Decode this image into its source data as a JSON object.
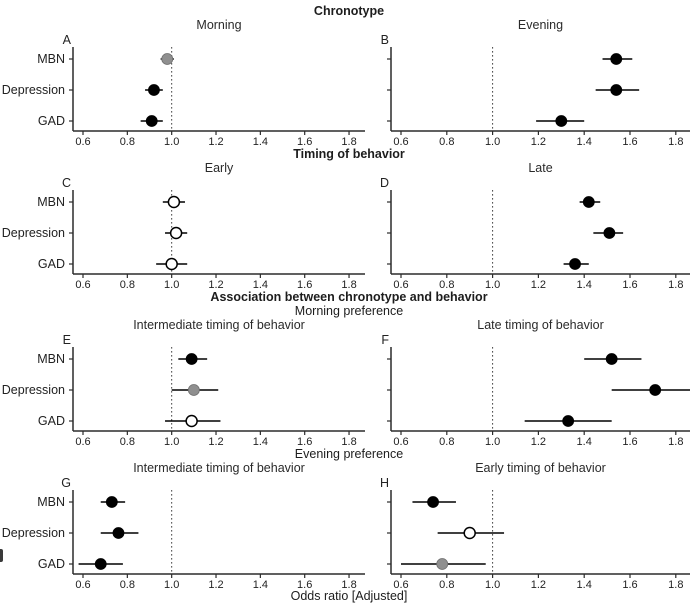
{
  "chart_data": {
    "type": "forest",
    "xlabel": "Odds ratio [Adjusted]",
    "categories": [
      "MBN",
      "Depression",
      "GAD"
    ],
    "x_ticks": [
      0.6,
      0.8,
      1.0,
      1.2,
      1.4,
      1.6,
      1.8
    ],
    "x_range": [
      0.55,
      1.9
    ],
    "reference_line": 1.0,
    "grid": false,
    "marker_colors": {
      "black": "#000000",
      "gray": "#8f8f8f",
      "white": "#ffffff"
    },
    "axis_color": "#2b2b2b",
    "rows": [
      {
        "header": "Chronotype",
        "subheader": "",
        "panels": [
          {
            "letter": "A",
            "title": "Morning",
            "side": "left",
            "points": [
              {
                "label": "MBN",
                "or": 0.98,
                "ci_low": 0.95,
                "ci_high": 1.01,
                "marker": "gray"
              },
              {
                "label": "Depression",
                "or": 0.92,
                "ci_low": 0.88,
                "ci_high": 0.96,
                "marker": "black"
              },
              {
                "label": "GAD",
                "or": 0.91,
                "ci_low": 0.86,
                "ci_high": 0.96,
                "marker": "black"
              }
            ]
          },
          {
            "letter": "B",
            "title": "Evening",
            "side": "right",
            "points": [
              {
                "label": "MBN",
                "or": 1.54,
                "ci_low": 1.48,
                "ci_high": 1.61,
                "marker": "black"
              },
              {
                "label": "Depression",
                "or": 1.54,
                "ci_low": 1.45,
                "ci_high": 1.64,
                "marker": "black"
              },
              {
                "label": "GAD",
                "or": 1.3,
                "ci_low": 1.19,
                "ci_high": 1.4,
                "marker": "black"
              }
            ]
          }
        ]
      },
      {
        "header": "Timing of behavior",
        "subheader": "",
        "panels": [
          {
            "letter": "C",
            "title": "Early",
            "side": "left",
            "points": [
              {
                "label": "MBN",
                "or": 1.01,
                "ci_low": 0.96,
                "ci_high": 1.06,
                "marker": "white"
              },
              {
                "label": "Depression",
                "or": 1.02,
                "ci_low": 0.97,
                "ci_high": 1.07,
                "marker": "white"
              },
              {
                "label": "GAD",
                "or": 1.0,
                "ci_low": 0.93,
                "ci_high": 1.07,
                "marker": "white"
              }
            ]
          },
          {
            "letter": "D",
            "title": "Late",
            "side": "right",
            "points": [
              {
                "label": "MBN",
                "or": 1.42,
                "ci_low": 1.38,
                "ci_high": 1.47,
                "marker": "black"
              },
              {
                "label": "Depression",
                "or": 1.51,
                "ci_low": 1.44,
                "ci_high": 1.57,
                "marker": "black"
              },
              {
                "label": "GAD",
                "or": 1.36,
                "ci_low": 1.31,
                "ci_high": 1.42,
                "marker": "black"
              }
            ]
          }
        ]
      },
      {
        "header": "Association between chronotype and behavior",
        "subheader": "Morning preference",
        "panels": [
          {
            "letter": "E",
            "title": "Intermediate timing of behavior",
            "side": "left",
            "points": [
              {
                "label": "MBN",
                "or": 1.09,
                "ci_low": 1.03,
                "ci_high": 1.16,
                "marker": "black"
              },
              {
                "label": "Depression",
                "or": 1.1,
                "ci_low": 1.0,
                "ci_high": 1.21,
                "marker": "gray"
              },
              {
                "label": "GAD",
                "or": 1.09,
                "ci_low": 0.97,
                "ci_high": 1.22,
                "marker": "white"
              }
            ]
          },
          {
            "letter": "F",
            "title": "Late timing of behavior",
            "side": "right",
            "points": [
              {
                "label": "MBN",
                "or": 1.52,
                "ci_low": 1.4,
                "ci_high": 1.65,
                "marker": "black"
              },
              {
                "label": "Depression",
                "or": 1.71,
                "ci_low": 1.52,
                "ci_high": 1.9,
                "marker": "black"
              },
              {
                "label": "GAD",
                "or": 1.33,
                "ci_low": 1.14,
                "ci_high": 1.52,
                "marker": "black"
              }
            ]
          }
        ]
      },
      {
        "header": "",
        "subheader": "Evening preference",
        "panels": [
          {
            "letter": "G",
            "title": "Intermediate timing of behavior",
            "side": "left",
            "points": [
              {
                "label": "MBN",
                "or": 0.73,
                "ci_low": 0.68,
                "ci_high": 0.79,
                "marker": "black"
              },
              {
                "label": "Depression",
                "or": 0.76,
                "ci_low": 0.68,
                "ci_high": 0.85,
                "marker": "black"
              },
              {
                "label": "GAD",
                "or": 0.68,
                "ci_low": 0.58,
                "ci_high": 0.78,
                "marker": "black"
              }
            ]
          },
          {
            "letter": "H",
            "title": "Early timing of behavior",
            "side": "right",
            "points": [
              {
                "label": "MBN",
                "or": 0.74,
                "ci_low": 0.65,
                "ci_high": 0.84,
                "marker": "black"
              },
              {
                "label": "Depression",
                "or": 0.9,
                "ci_low": 0.76,
                "ci_high": 1.05,
                "marker": "white"
              },
              {
                "label": "GAD",
                "or": 0.78,
                "ci_low": 0.6,
                "ci_high": 0.97,
                "marker": "gray"
              }
            ]
          }
        ]
      }
    ]
  }
}
